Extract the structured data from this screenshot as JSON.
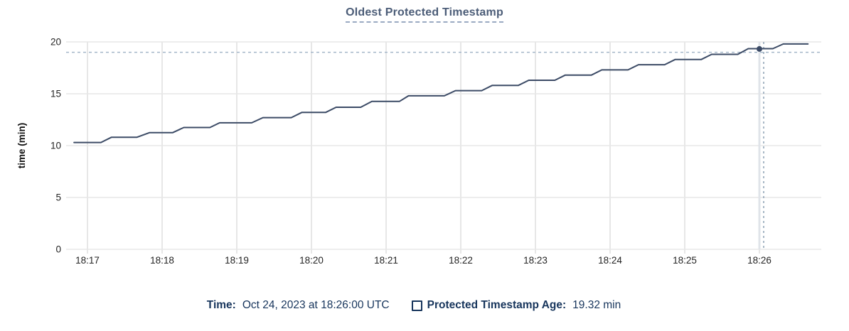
{
  "title": "Oldest Protected Timestamp",
  "chart_data": {
    "type": "line",
    "title": "Oldest Protected Timestamp",
    "xlabel": "",
    "ylabel": "time (min)",
    "ylim": [
      0,
      20
    ],
    "y_ticks": [
      0,
      5,
      10,
      15,
      20
    ],
    "x_ticks": [
      "18:17",
      "18:18",
      "18:19",
      "18:20",
      "18:21",
      "18:22",
      "18:23",
      "18:24",
      "18:25",
      "18:26"
    ],
    "grid": true,
    "legend_position": "bottom",
    "series": [
      {
        "name": "Protected Timestamp Age",
        "color": "#3c4b66",
        "style": "step",
        "points": [
          [
            -0.18,
            10.3
          ],
          [
            0.18,
            10.3
          ],
          [
            0.32,
            10.8
          ],
          [
            0.66,
            10.8
          ],
          [
            0.83,
            11.25
          ],
          [
            1.14,
            11.25
          ],
          [
            1.29,
            11.75
          ],
          [
            1.64,
            11.75
          ],
          [
            1.77,
            12.2
          ],
          [
            2.2,
            12.2
          ],
          [
            2.35,
            12.7
          ],
          [
            2.73,
            12.7
          ],
          [
            2.87,
            13.2
          ],
          [
            3.19,
            13.2
          ],
          [
            3.33,
            13.7
          ],
          [
            3.66,
            13.7
          ],
          [
            3.81,
            14.27
          ],
          [
            4.18,
            14.27
          ],
          [
            4.3,
            14.8
          ],
          [
            4.78,
            14.8
          ],
          [
            4.93,
            15.3
          ],
          [
            5.28,
            15.3
          ],
          [
            5.42,
            15.8
          ],
          [
            5.77,
            15.8
          ],
          [
            5.91,
            16.3
          ],
          [
            6.26,
            16.3
          ],
          [
            6.4,
            16.8
          ],
          [
            6.75,
            16.8
          ],
          [
            6.89,
            17.3
          ],
          [
            7.24,
            17.3
          ],
          [
            7.38,
            17.8
          ],
          [
            7.73,
            17.8
          ],
          [
            7.87,
            18.3
          ],
          [
            8.22,
            18.3
          ],
          [
            8.36,
            18.8
          ],
          [
            8.71,
            18.8
          ],
          [
            8.85,
            19.35
          ],
          [
            9.18,
            19.35
          ],
          [
            9.32,
            19.8
          ],
          [
            9.65,
            19.8
          ]
        ]
      }
    ],
    "hover": {
      "x_tick": "18:26",
      "t": 9.0,
      "value": 19.32,
      "hline_value": 19.0
    }
  },
  "legend": {
    "time_label": "Time:",
    "time_value": "Oct 24, 2023 at 18:26:00 UTC",
    "series_label": "Protected Timestamp Age:",
    "series_value": "19.32 min"
  },
  "colors": {
    "series_line": "#3c4b66",
    "hover_dot": "#3c4b66",
    "gridline": "#ededed",
    "axis_line": "#e7e7e7",
    "crosshair_solid": "#e0e4e9",
    "crosshair_dashed_v": "#8ba0b4",
    "crosshair_dashed_h": "#a5b7c9",
    "tick_text": "#242424",
    "title_text": "#4b5c77",
    "legend_text": "#17355c"
  }
}
